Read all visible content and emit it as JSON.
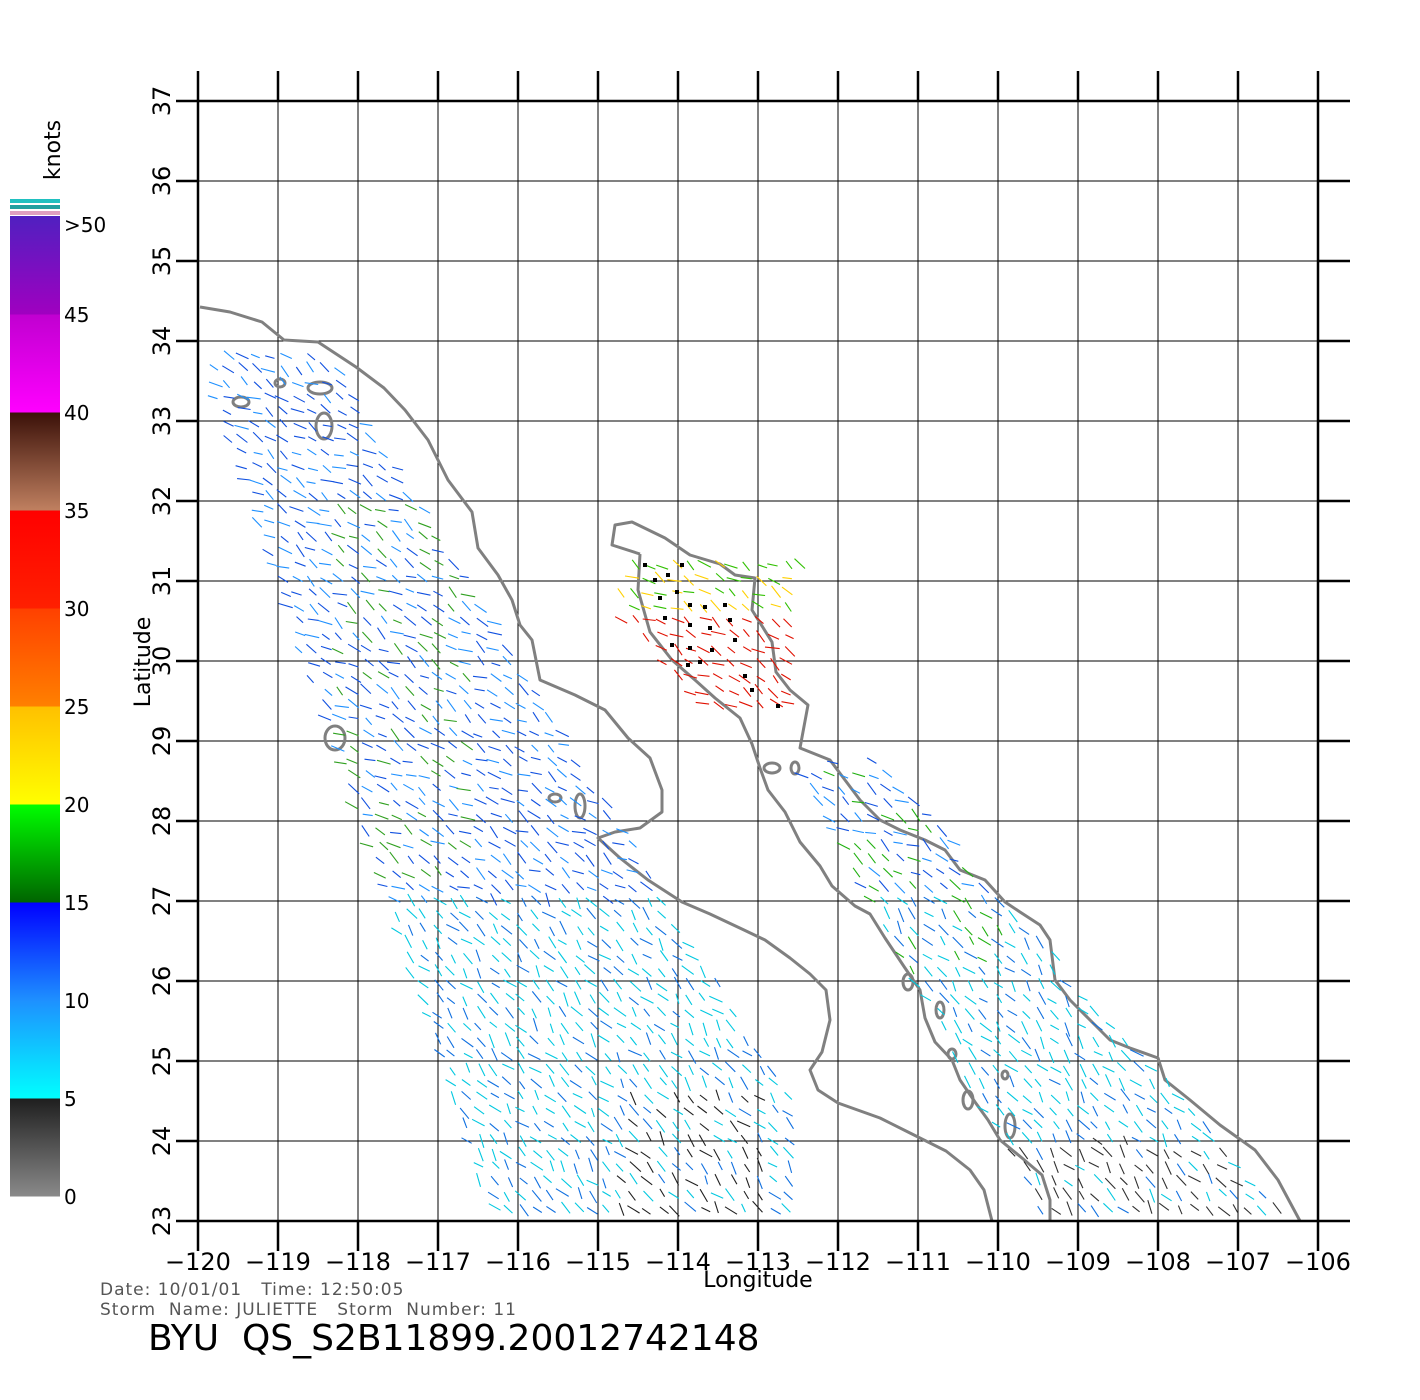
{
  "map": {
    "x_axis": {
      "label": "Longitude",
      "min": -120,
      "max": -106,
      "ticks": [
        -120,
        -119,
        -118,
        -117,
        -116,
        -115,
        -114,
        -113,
        -112,
        -111,
        -110,
        -109,
        -108,
        -107,
        -106
      ],
      "tick_labels": [
        "−120",
        "−119",
        "−118",
        "−117",
        "−116",
        "−115",
        "−114",
        "−113",
        "−112",
        "−111",
        "−110",
        "−109",
        "−108",
        "−107",
        "−106"
      ]
    },
    "y_axis": {
      "label": "Latitude",
      "min": 23,
      "max": 37,
      "ticks": [
        23,
        24,
        25,
        26,
        27,
        28,
        29,
        30,
        31,
        32,
        33,
        34,
        35,
        36,
        37
      ],
      "tick_labels": [
        "23",
        "24",
        "25",
        "26",
        "27",
        "28",
        "29",
        "30",
        "31",
        "32",
        "33",
        "34",
        "35",
        "36",
        "37"
      ]
    },
    "grid": true,
    "coastline_color": "#808080"
  },
  "wind_scale": {
    "unit": "knots",
    "bands": [
      {
        "from": 0,
        "to": 5,
        "colors": [
          "#8a8a8a",
          "#1e1e1e"
        ]
      },
      {
        "from": 5,
        "to": 10,
        "colors": [
          "#00ffff",
          "#1e90ff"
        ]
      },
      {
        "from": 10,
        "to": 15,
        "colors": [
          "#1e90ff",
          "#0000ff"
        ]
      },
      {
        "from": 15,
        "to": 20,
        "colors": [
          "#006400",
          "#00ff00"
        ]
      },
      {
        "from": 20,
        "to": 25,
        "colors": [
          "#ffff00",
          "#ffc000"
        ]
      },
      {
        "from": 25,
        "to": 30,
        "colors": [
          "#ff8000",
          "#ff4000"
        ]
      },
      {
        "from": 30,
        "to": 35,
        "colors": [
          "#ff2000",
          "#ff0000"
        ]
      },
      {
        "from": 35,
        "to": 40,
        "colors": [
          "#c08060",
          "#3a1008"
        ]
      },
      {
        "from": 40,
        "to": 45,
        "colors": [
          "#ff00ff",
          "#c000d0"
        ]
      },
      {
        "from": 45,
        "to": 50,
        "colors": [
          "#a000c0",
          "#5020c0"
        ]
      }
    ],
    "labels": [
      "0",
      "5",
      "10",
      "15",
      "20",
      "25",
      "30",
      "35",
      "40",
      "45",
      ">50"
    ]
  },
  "info": {
    "date_line": "Date: 10/01/01   Time: 12:50:05",
    "storm_line": "Storm  Name: JULIETTE   Storm  Number: 11",
    "title": "BYU  QS_S2B11899.20012742148"
  }
}
